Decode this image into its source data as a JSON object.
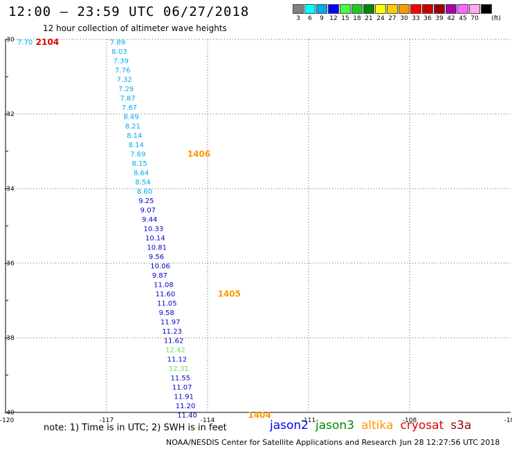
{
  "header": {
    "title": "12:00 – 23:59 UTC 06/27/2018",
    "subtitle": "12 hour collection of altimeter wave heights"
  },
  "legend": {
    "swatches": [
      {
        "color": "#808080",
        "label": "3"
      },
      {
        "color": "#00ffff",
        "label": "6"
      },
      {
        "color": "#00a8f0",
        "label": "9"
      },
      {
        "color": "#0000ff",
        "label": "12"
      },
      {
        "color": "#44ff44",
        "label": "15"
      },
      {
        "color": "#22c822",
        "label": "18"
      },
      {
        "color": "#008800",
        "label": "21"
      },
      {
        "color": "#ffff00",
        "label": "24"
      },
      {
        "color": "#ffcc00",
        "label": "27"
      },
      {
        "color": "#ff9900",
        "label": "30"
      },
      {
        "color": "#ff0000",
        "label": "33"
      },
      {
        "color": "#cc0000",
        "label": "36"
      },
      {
        "color": "#990000",
        "label": "39"
      },
      {
        "color": "#aa00aa",
        "label": "42"
      },
      {
        "color": "#ff66ff",
        "label": "45"
      },
      {
        "color": "#ffaaee",
        "label": "70"
      },
      {
        "color": "#000000",
        "label": "(ft)"
      }
    ]
  },
  "axes": {
    "lon_ticks": [
      "-120",
      "-117",
      "-114",
      "-111",
      "-108",
      "-10"
    ],
    "lat_ticks": [
      "-30",
      "-32",
      "-34",
      "-36",
      "-38",
      "-40"
    ]
  },
  "track": [
    {
      "lon": -116.9,
      "lat": -30.08,
      "v": "7.89",
      "c": "#00a8f0"
    },
    {
      "lon": -116.85,
      "lat": -30.33,
      "v": "8.03",
      "c": "#00a8f0"
    },
    {
      "lon": -116.8,
      "lat": -30.58,
      "v": "7.39",
      "c": "#00a8f0"
    },
    {
      "lon": -116.75,
      "lat": -30.83,
      "v": "7.76",
      "c": "#00a8f0"
    },
    {
      "lon": -116.7,
      "lat": -31.08,
      "v": "7.32",
      "c": "#00a8f0"
    },
    {
      "lon": -116.65,
      "lat": -31.33,
      "v": "7.29",
      "c": "#00a8f0"
    },
    {
      "lon": -116.6,
      "lat": -31.58,
      "v": "7.87",
      "c": "#00a8f0"
    },
    {
      "lon": -116.55,
      "lat": -31.83,
      "v": "7.67",
      "c": "#00a8f0"
    },
    {
      "lon": -116.5,
      "lat": -32.08,
      "v": "8.49",
      "c": "#00a8f0"
    },
    {
      "lon": -116.45,
      "lat": -32.33,
      "v": "8.21",
      "c": "#00a8f0"
    },
    {
      "lon": -116.4,
      "lat": -32.58,
      "v": "8.14",
      "c": "#00a8f0"
    },
    {
      "lon": -116.35,
      "lat": -32.83,
      "v": "8.14",
      "c": "#00a8f0"
    },
    {
      "lon": -116.3,
      "lat": -33.08,
      "v": "7.69",
      "c": "#00a8f0"
    },
    {
      "lon": -116.25,
      "lat": -33.33,
      "v": "8.15",
      "c": "#00a8f0"
    },
    {
      "lon": -116.2,
      "lat": -33.58,
      "v": "8.64",
      "c": "#00a8f0"
    },
    {
      "lon": -116.15,
      "lat": -33.83,
      "v": "8.54",
      "c": "#00a8f0"
    },
    {
      "lon": -116.1,
      "lat": -34.08,
      "v": "8.60",
      "c": "#00a8f0"
    },
    {
      "lon": -116.05,
      "lat": -34.33,
      "v": "9.25",
      "c": "#0000c8"
    },
    {
      "lon": -116.0,
      "lat": -34.58,
      "v": "9.07",
      "c": "#0000c8"
    },
    {
      "lon": -115.95,
      "lat": -34.83,
      "v": "9.44",
      "c": "#0000c8"
    },
    {
      "lon": -115.9,
      "lat": -35.08,
      "v": "10.33",
      "c": "#0000c8"
    },
    {
      "lon": -115.85,
      "lat": -35.33,
      "v": "10.14",
      "c": "#0000c8"
    },
    {
      "lon": -115.8,
      "lat": -35.58,
      "v": "10.81",
      "c": "#0000c8"
    },
    {
      "lon": -115.75,
      "lat": -35.83,
      "v": "9.56",
      "c": "#0000c8"
    },
    {
      "lon": -115.7,
      "lat": -36.08,
      "v": "10.06",
      "c": "#0000c8"
    },
    {
      "lon": -115.65,
      "lat": -36.33,
      "v": "9.87",
      "c": "#0000c8"
    },
    {
      "lon": -115.6,
      "lat": -36.58,
      "v": "11.08",
      "c": "#0000c8"
    },
    {
      "lon": -115.55,
      "lat": -36.83,
      "v": "11.60",
      "c": "#0000c8"
    },
    {
      "lon": -115.5,
      "lat": -37.08,
      "v": "11.05",
      "c": "#0000c8"
    },
    {
      "lon": -115.45,
      "lat": -37.33,
      "v": "9.58",
      "c": "#0000c8"
    },
    {
      "lon": -115.4,
      "lat": -37.58,
      "v": "11.97",
      "c": "#0000c8"
    },
    {
      "lon": -115.35,
      "lat": -37.83,
      "v": "11.23",
      "c": "#0000c8"
    },
    {
      "lon": -115.3,
      "lat": -38.08,
      "v": "11.62",
      "c": "#0000c8"
    },
    {
      "lon": -115.25,
      "lat": -38.33,
      "v": "12.42",
      "c": "#66dd66"
    },
    {
      "lon": -115.2,
      "lat": -38.58,
      "v": "11.12",
      "c": "#0000c8"
    },
    {
      "lon": -115.15,
      "lat": -38.83,
      "v": "12.31",
      "c": "#66dd66"
    },
    {
      "lon": -115.1,
      "lat": -39.08,
      "v": "11.55",
      "c": "#0000c8"
    },
    {
      "lon": -115.05,
      "lat": -39.33,
      "v": "11.07",
      "c": "#0000c8"
    },
    {
      "lon": -115.0,
      "lat": -39.58,
      "v": "11.91",
      "c": "#0000c8"
    },
    {
      "lon": -114.95,
      "lat": -39.83,
      "v": "11.20",
      "c": "#0000c8"
    },
    {
      "lon": -114.9,
      "lat": -40.08,
      "v": "11.40",
      "c": "#0000c8"
    }
  ],
  "edge_value": {
    "lon": -119.65,
    "lat": -30.08,
    "v": "7.70",
    "c": "#00a8f0"
  },
  "pass_labels": [
    {
      "lon": -119.1,
      "lat": -30.08,
      "v": "2104",
      "c": "#dd0000"
    },
    {
      "lon": -114.6,
      "lat": -33.08,
      "v": "1406",
      "c": "#ff9900"
    },
    {
      "lon": -113.7,
      "lat": -36.83,
      "v": "1405",
      "c": "#ff9900"
    },
    {
      "lon": -112.8,
      "lat": -40.08,
      "v": "1404",
      "c": "#ff9900"
    }
  ],
  "note": "note:  1) Time is in UTC;  2) SWH is in feet",
  "satellites": [
    {
      "name": "jason2",
      "color": "#0000ff"
    },
    {
      "name": "jason3",
      "color": "#008800"
    },
    {
      "name": "altika",
      "color": "#ff9900"
    },
    {
      "name": "cryosat",
      "color": "#dd0000"
    },
    {
      "name": "s3a",
      "color": "#990000"
    }
  ],
  "footer": {
    "credit": "NOAA/NESDIS Center for Satellite Applications and Research",
    "timestamp": "Jun 28 12:27:56 UTC 2018"
  }
}
